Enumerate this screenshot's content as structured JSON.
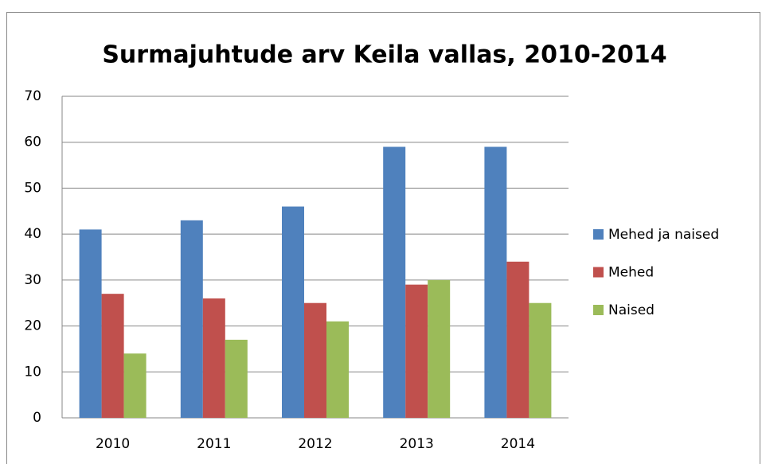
{
  "chart_data": {
    "type": "bar",
    "title": "Surmajuhtude arv Keila vallas, 2010-2014",
    "categories": [
      "2010",
      "2011",
      "2012",
      "2013",
      "2014"
    ],
    "series": [
      {
        "name": "Mehed ja naised",
        "color": "#4f81bd",
        "values": [
          41,
          43,
          46,
          59,
          59
        ]
      },
      {
        "name": "Mehed",
        "color": "#c0504d",
        "values": [
          27,
          26,
          25,
          29,
          34
        ]
      },
      {
        "name": "Naised",
        "color": "#9bbb59",
        "values": [
          14,
          17,
          21,
          30,
          25
        ]
      }
    ],
    "ylim": [
      0,
      70
    ],
    "yticks": [
      0,
      10,
      20,
      30,
      40,
      50,
      60,
      70
    ],
    "grid": true,
    "legend": "right"
  }
}
